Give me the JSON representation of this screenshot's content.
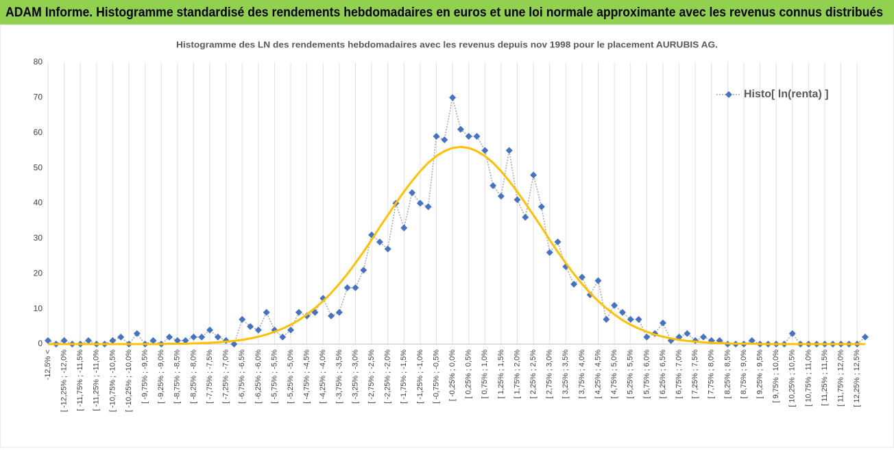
{
  "header": {
    "title": "ADAM Informe. Histogramme standardisé des rendements hebdomadaires en euros et une loi normale approximante avec les revenus connus distribués"
  },
  "chart_data": {
    "type": "line",
    "title": "Histogramme des LN des rendements hebdomadaires avec les revenus depuis nov 1998 pour le placement AURUBIS AG.",
    "categories": [
      "-12,5% <",
      null,
      "[ -12,25% ; -12,0%",
      null,
      "[ -11,75% ; -11,5%",
      null,
      "[ -11,25% ; -11,0%",
      null,
      "[ -10,75% ; -10,5%",
      null,
      "[ -10,25% ; -10,0%",
      null,
      "[ -9,75% ; -9,5%",
      null,
      "[ -9,25% ; -9,0%",
      null,
      "[ -8,75% ; -8,5%",
      null,
      "[ -8,25% ; -8,0%",
      null,
      "[ -7,75% ; -7,5%",
      null,
      "[ -7,25% ; -7,0%",
      null,
      "[ -6,75% ; -6,5%",
      null,
      "[ -6,25% ; -6,0%",
      null,
      "[ -5,75% ; -5,5%",
      null,
      "[ -5,25% ; -5,0%",
      null,
      "[ -4,75% ; -4,5%",
      null,
      "[ -4,25% ; -4,0%",
      null,
      "[ -3,75% ; -3,5%",
      null,
      "[ -3,25% ; -3,0%",
      null,
      "[ -2,75% ; -2,5%",
      null,
      "[ -2,25% ; -2,0%",
      null,
      "[ -1,75% ; -1,5%",
      null,
      "[ -1,25% ; -1,0%",
      null,
      "[ -0,75% ; -0,5%",
      null,
      "[ -0,25% ; 0,0%",
      null,
      "[ 0,25% ; 0,5%",
      null,
      "[ 0,75% ; 1,0%",
      null,
      "[ 1,25% ; 1,5%",
      null,
      "[ 1,75% ; 2,0%",
      null,
      "[ 2,25% ; 2,5%",
      null,
      "[ 2,75% ; 3,0%",
      null,
      "[ 3,25% ; 3,5%",
      null,
      "[ 3,75% ; 4,0%",
      null,
      "[ 4,25% ; 4,5%",
      null,
      "[ 4,75% ; 5,0%",
      null,
      "[ 5,25% ; 5,5%",
      null,
      "[ 5,75% ; 6,0%",
      null,
      "[ 6,25% ; 6,5%",
      null,
      "[ 6,75% ; 7,0%",
      null,
      "[ 7,25% ; 7,5%",
      null,
      "[ 7,75% ; 8,0%",
      null,
      "[ 8,25% ; 8,5%",
      null,
      "[ 8,75% ; 9,0%",
      null,
      "[ 9,25% ; 9,5%",
      null,
      "[ 9,75% ; 10,0%",
      null,
      "[ 10,25% ; 10,5%",
      null,
      "[ 10,75% ; 11,0%",
      null,
      "[ 11,25% ; 11,5%",
      null,
      "[ 11,75% ; 12,0%",
      null,
      "[ 12,25% ; 12,5%",
      null
    ],
    "series": [
      {
        "name": "Histo[ ln(renta) ]",
        "color": "#4472c4",
        "line_color": "#a5a5a5",
        "values": [
          1,
          0,
          1,
          0,
          0,
          1,
          0,
          0,
          1,
          2,
          0,
          3,
          0,
          1,
          0,
          2,
          1,
          1,
          2,
          2,
          4,
          2,
          1,
          0,
          7,
          5,
          4,
          9,
          4,
          2,
          4,
          9,
          8,
          9,
          13,
          8,
          9,
          16,
          16,
          21,
          31,
          29,
          27,
          40,
          33,
          43,
          40,
          39,
          59,
          58,
          70,
          61,
          59,
          59,
          55,
          45,
          42,
          55,
          41,
          36,
          48,
          39,
          26,
          29,
          22,
          17,
          19,
          14,
          18,
          7,
          11,
          9,
          7,
          7,
          2,
          3,
          6,
          1,
          2,
          3,
          1,
          2,
          1,
          1,
          0,
          0,
          0,
          1,
          0,
          0,
          0,
          0,
          3,
          0,
          0,
          0,
          0,
          0,
          0,
          0,
          0,
          2
        ]
      },
      {
        "color": "#ffc000",
        "values": [
          0,
          0,
          0,
          0,
          0,
          0,
          0,
          0,
          0,
          0,
          0,
          0,
          0,
          0,
          0,
          0.1,
          0.1,
          0.1,
          0.2,
          0.3,
          0.4,
          0.5,
          0.7,
          0.9,
          1.2,
          1.6,
          2.1,
          2.7,
          3.5,
          4.4,
          5.5,
          6.8,
          8.4,
          10.2,
          12.2,
          14.5,
          17.1,
          19.9,
          23.0,
          26.2,
          29.6,
          33.2,
          36.6,
          40.0,
          43.3,
          46.3,
          49.1,
          51.5,
          53.4,
          54.8,
          55.7,
          56,
          55.7,
          54.8,
          53.4,
          51.5,
          49.1,
          46.3,
          43.3,
          40.0,
          36.6,
          33.2,
          29.6,
          26.2,
          23.0,
          19.9,
          17.1,
          14.5,
          12.2,
          10.2,
          8.4,
          6.8,
          5.5,
          4.4,
          3.5,
          2.7,
          2.1,
          1.6,
          1.2,
          0.9,
          0.7,
          0.5,
          0.4,
          0.3,
          0.2,
          0.1,
          0.1,
          0.1,
          0,
          0,
          0,
          0,
          0,
          0,
          0,
          0,
          0,
          0,
          0,
          0,
          0,
          0
        ]
      }
    ],
    "ylim": [
      0,
      80
    ],
    "yticks": [
      0,
      10,
      20,
      30,
      40,
      50,
      60,
      70,
      80
    ],
    "grid": "x",
    "legend": "top-right"
  }
}
